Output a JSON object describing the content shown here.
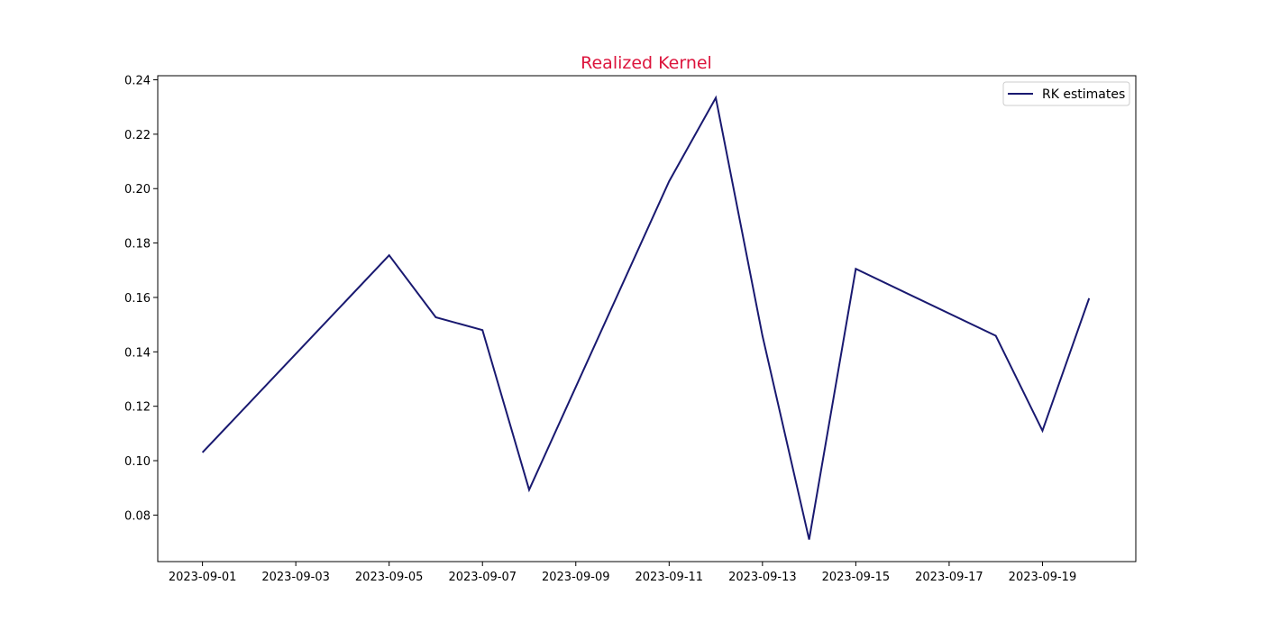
{
  "chart_data": {
    "type": "line",
    "title": "Realized Kernel",
    "xlabel": "",
    "ylabel": "",
    "x": [
      "2023-09-01",
      "2023-09-05",
      "2023-09-06",
      "2023-09-07",
      "2023-09-08",
      "2023-09-11",
      "2023-09-12",
      "2023-09-13",
      "2023-09-14",
      "2023-09-15",
      "2023-09-18",
      "2023-09-19",
      "2023-09-20"
    ],
    "series": [
      {
        "name": "RK estimates",
        "values": [
          0.103,
          0.1755,
          0.1527,
          0.148,
          0.0893,
          0.2027,
          0.2334,
          0.1459,
          0.071,
          0.1705,
          0.1459,
          0.111,
          0.1597
        ]
      }
    ],
    "xticks": [
      "2023-09-01",
      "2023-09-03",
      "2023-09-05",
      "2023-09-07",
      "2023-09-09",
      "2023-09-11",
      "2023-09-13",
      "2023-09-15",
      "2023-09-17",
      "2023-09-19"
    ],
    "yticks": [
      "0.08",
      "0.10",
      "0.12",
      "0.14",
      "0.16",
      "0.18",
      "0.20",
      "0.22",
      "0.24"
    ],
    "xlim": [
      "2023-08-31T01:00",
      "2023-09-21T00:00"
    ],
    "ylim": [
      0.0629,
      0.2415
    ],
    "grid": false,
    "legend": "top-right",
    "colors": {
      "line": "#191970",
      "title": "#dc143c",
      "axes": "#000000"
    }
  }
}
